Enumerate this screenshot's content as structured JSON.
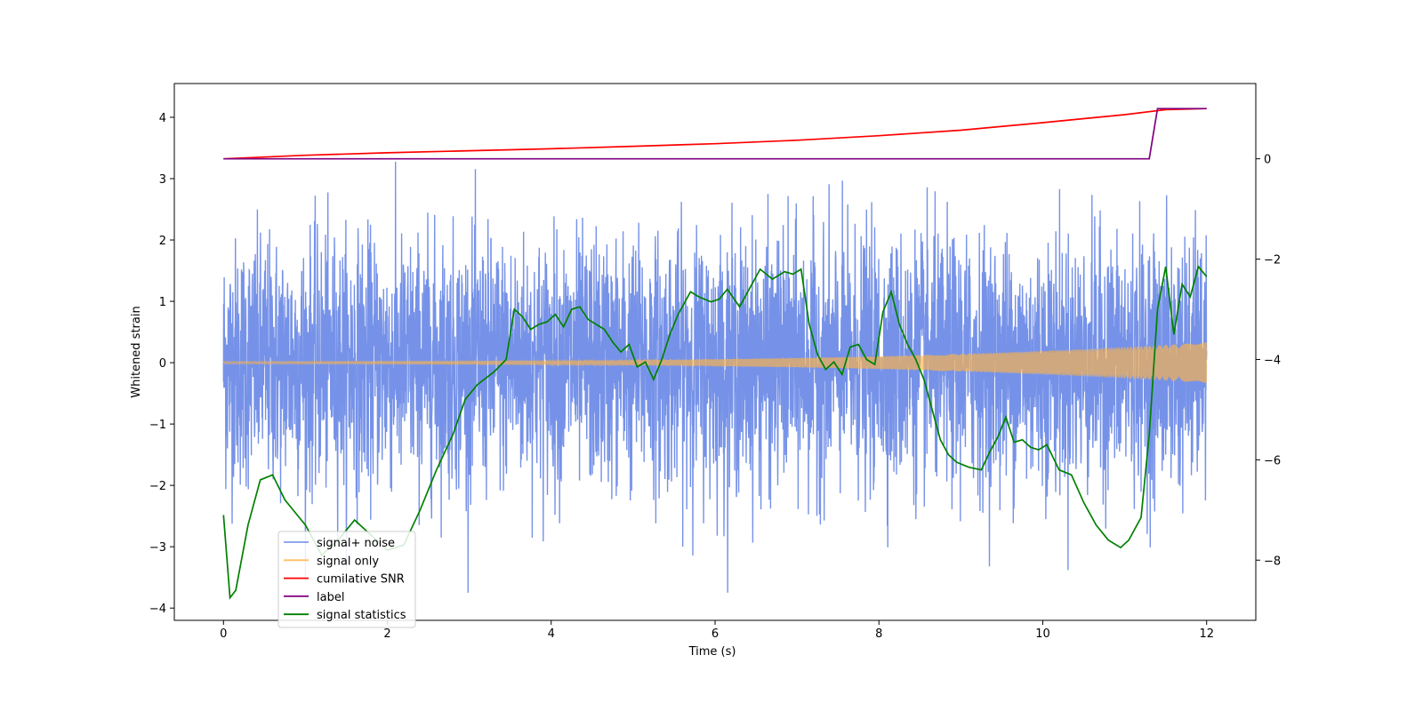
{
  "chart_data": {
    "type": "line",
    "title": "",
    "xlabel": "Time (s)",
    "ylabel": "Whitened strain",
    "y2label": "",
    "xlim": [
      -0.6,
      12.6
    ],
    "ylim": [
      -4.2,
      4.55
    ],
    "y2lim": [
      -9.2,
      1.5
    ],
    "x_ticks": [
      "0",
      "2",
      "4",
      "6",
      "8",
      "10",
      "12"
    ],
    "y_ticks": [
      "−4",
      "−3",
      "−2",
      "−1",
      "0",
      "1",
      "2",
      "3",
      "4"
    ],
    "y2_ticks": [
      "−8",
      "−6",
      "−4",
      "−2",
      "0"
    ],
    "grid": false,
    "legend_position": "lower-left",
    "series": [
      {
        "name": "signal+ noise",
        "axis": "left",
        "color": "#6a89e6",
        "description_type": "noise",
        "x_range": [
          0,
          12
        ],
        "noise_std": 1.0
      },
      {
        "name": "signal only",
        "axis": "left",
        "color": "#ffb347",
        "description_type": "chirp",
        "x_range": [
          0,
          12
        ],
        "amplitude_start": 0.02,
        "amplitude_end": 0.33
      },
      {
        "name": "cumilative SNR",
        "axis": "right",
        "color": "#ff0000",
        "x": [
          0,
          1,
          2,
          3,
          4,
          5,
          6,
          7,
          8,
          9,
          10,
          10.5,
          11,
          11.5,
          12
        ],
        "values": [
          0,
          0.07,
          0.12,
          0.16,
          0.2,
          0.25,
          0.3,
          0.37,
          0.46,
          0.57,
          0.72,
          0.8,
          0.88,
          0.98,
          1.0
        ]
      },
      {
        "name": "label",
        "axis": "right",
        "color": "#800080",
        "x": [
          0,
          11.3,
          11.4,
          12
        ],
        "values": [
          0,
          0,
          1,
          1
        ]
      },
      {
        "name": "signal statistics",
        "axis": "right",
        "color": "#008000",
        "x": [
          0,
          0.08,
          0.15,
          0.3,
          0.45,
          0.6,
          0.75,
          0.9,
          1.0,
          1.2,
          1.4,
          1.6,
          1.8,
          2.0,
          2.2,
          2.4,
          2.6,
          2.8,
          2.95,
          3.1,
          3.3,
          3.45,
          3.55,
          3.65,
          3.75,
          3.85,
          3.95,
          4.05,
          4.15,
          4.25,
          4.35,
          4.45,
          4.55,
          4.65,
          4.75,
          4.85,
          4.95,
          5.05,
          5.15,
          5.25,
          5.35,
          5.45,
          5.55,
          5.7,
          5.8,
          5.95,
          6.05,
          6.15,
          6.3,
          6.4,
          6.55,
          6.7,
          6.85,
          6.95,
          7.05,
          7.15,
          7.25,
          7.35,
          7.45,
          7.55,
          7.65,
          7.75,
          7.85,
          7.95,
          8.05,
          8.15,
          8.25,
          8.35,
          8.45,
          8.55,
          8.65,
          8.75,
          8.85,
          8.95,
          9.1,
          9.25,
          9.35,
          9.45,
          9.55,
          9.65,
          9.75,
          9.85,
          9.95,
          10.05,
          10.2,
          10.35,
          10.5,
          10.65,
          10.8,
          10.95,
          11.05,
          11.2,
          11.3,
          11.4,
          11.5,
          11.6,
          11.7,
          11.8,
          11.9,
          12.0
        ],
        "values": [
          -7.1,
          -8.75,
          -8.6,
          -7.3,
          -6.4,
          -6.3,
          -6.8,
          -7.1,
          -7.3,
          -7.9,
          -7.6,
          -7.2,
          -7.5,
          -7.8,
          -7.7,
          -7.0,
          -6.2,
          -5.5,
          -4.8,
          -4.5,
          -4.25,
          -4.0,
          -3.0,
          -3.15,
          -3.4,
          -3.3,
          -3.25,
          -3.1,
          -3.35,
          -3.0,
          -2.95,
          -3.2,
          -3.3,
          -3.4,
          -3.65,
          -3.85,
          -3.7,
          -4.15,
          -4.05,
          -4.4,
          -4.0,
          -3.5,
          -3.1,
          -2.65,
          -2.75,
          -2.85,
          -2.8,
          -2.6,
          -2.95,
          -2.65,
          -2.2,
          -2.4,
          -2.25,
          -2.3,
          -2.2,
          -3.3,
          -3.9,
          -4.2,
          -4.05,
          -4.3,
          -3.75,
          -3.7,
          -4.0,
          -4.1,
          -3.05,
          -2.65,
          -3.3,
          -3.7,
          -4.0,
          -4.4,
          -5.0,
          -5.6,
          -5.9,
          -6.05,
          -6.15,
          -6.2,
          -5.85,
          -5.55,
          -5.15,
          -5.65,
          -5.6,
          -5.75,
          -5.8,
          -5.7,
          -6.2,
          -6.3,
          -6.85,
          -7.3,
          -7.6,
          -7.75,
          -7.6,
          -7.15,
          -5.5,
          -3.0,
          -2.15,
          -3.5,
          -2.5,
          -2.75,
          -2.15,
          -2.35
        ]
      }
    ]
  }
}
